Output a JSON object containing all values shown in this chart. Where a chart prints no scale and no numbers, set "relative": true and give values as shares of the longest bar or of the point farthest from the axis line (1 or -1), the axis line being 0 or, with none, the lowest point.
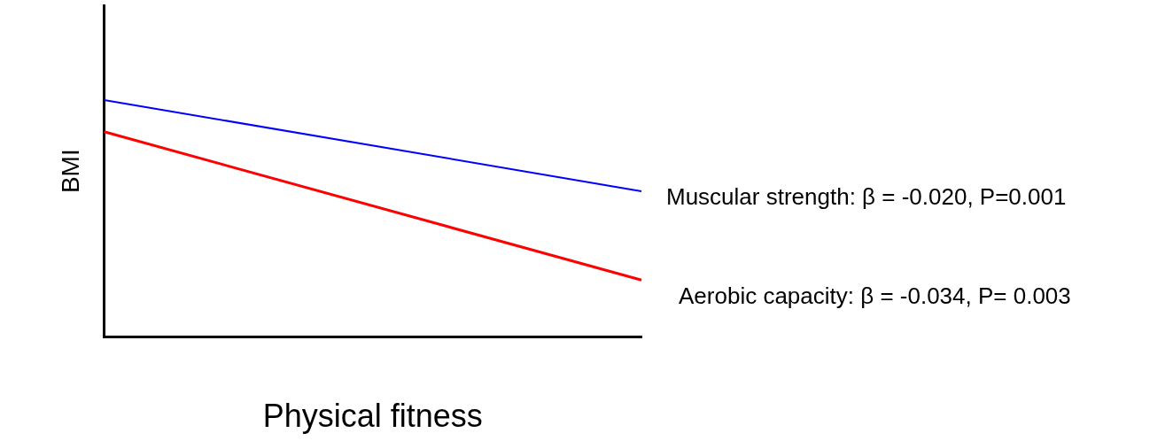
{
  "chart_data": {
    "type": "line",
    "relative": true,
    "xlabel": "Physical fitness",
    "ylabel": "BMI",
    "categories": [
      null,
      null
    ],
    "grid": false,
    "legend": false,
    "marker": "none",
    "line_style": "solid",
    "series": [
      {
        "name": "Muscular strength: β = -0.020, P=0.001",
        "color": "#0000ff",
        "values": [
          1,
          0.615
        ]
      },
      {
        "name": "Aerobic capacity: β = -0.034, P= 0.003",
        "color": "#ff0000",
        "values": [
          0.866,
          0.24
        ]
      }
    ]
  }
}
